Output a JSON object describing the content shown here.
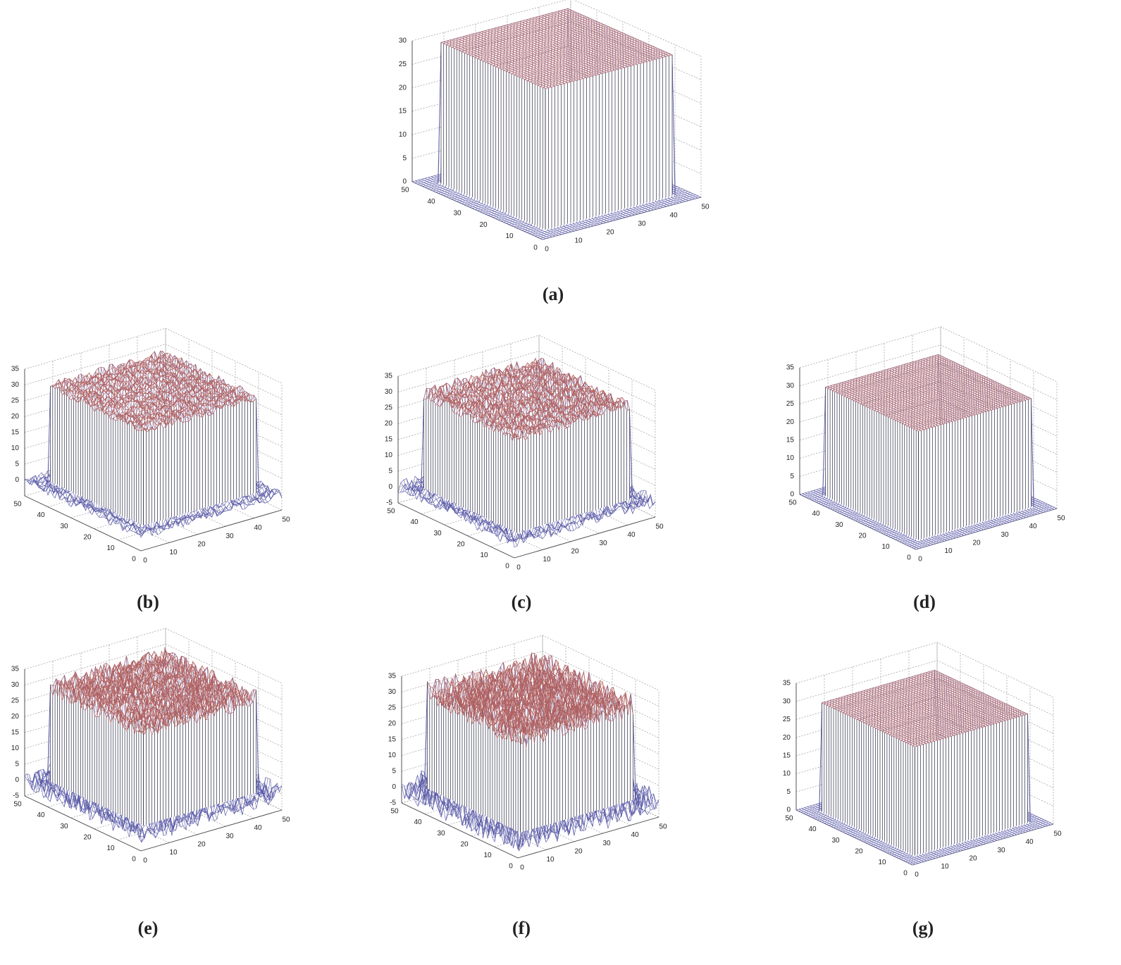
{
  "chart_data": [
    {
      "type": "surface",
      "caption": "(a)",
      "xlim": [
        0,
        50
      ],
      "ylim": [
        0,
        50
      ],
      "zlim": [
        0,
        30
      ],
      "xticks": [
        0,
        10,
        20,
        30,
        40,
        50
      ],
      "yticks": [
        0,
        10,
        20,
        30,
        40,
        50
      ],
      "zticks": [
        0,
        5,
        10,
        15,
        20,
        25,
        30
      ],
      "plateau_x": [
        5,
        45
      ],
      "plateau_y": [
        5,
        45
      ],
      "plateau_z": 30,
      "base_z": 0,
      "noise_amplitude": 0,
      "colors": {
        "top": "#b06060",
        "base": "#5a5aa8",
        "wall": "#2e2e48"
      }
    },
    {
      "type": "surface",
      "caption": "(b)",
      "xlim": [
        0,
        50
      ],
      "ylim": [
        0,
        50
      ],
      "zlim": [
        -5,
        35
      ],
      "xticks": [
        0,
        10,
        20,
        30,
        40,
        50
      ],
      "yticks": [
        0,
        10,
        20,
        30,
        40,
        50
      ],
      "zticks": [
        0,
        5,
        10,
        15,
        20,
        25,
        30,
        35
      ],
      "plateau_x": [
        5,
        45
      ],
      "plateau_y": [
        5,
        45
      ],
      "plateau_z": 30,
      "base_z": 0,
      "noise_amplitude": 1.5,
      "colors": {
        "top": "#b06060",
        "base": "#5a5aa8",
        "wall": "#2e2e48"
      }
    },
    {
      "type": "surface",
      "caption": "(c)",
      "xlim": [
        0,
        50
      ],
      "ylim": [
        0,
        50
      ],
      "zlim": [
        -5,
        35
      ],
      "xticks": [
        0,
        10,
        20,
        30,
        40,
        50
      ],
      "yticks": [
        0,
        10,
        20,
        30,
        40,
        50
      ],
      "zticks": [
        -5,
        0,
        5,
        10,
        15,
        20,
        25,
        30,
        35
      ],
      "plateau_x": [
        5,
        45
      ],
      "plateau_y": [
        5,
        45
      ],
      "plateau_z": 30,
      "base_z": 0,
      "noise_amplitude": 2,
      "colors": {
        "top": "#b06060",
        "base": "#5a5aa8",
        "wall": "#2e2e48"
      }
    },
    {
      "type": "surface",
      "caption": "(d)",
      "xlim": [
        0,
        50
      ],
      "ylim": [
        0,
        50
      ],
      "zlim": [
        0,
        35
      ],
      "xticks": [
        0,
        10,
        20,
        30,
        40,
        50
      ],
      "yticks": [
        0,
        10,
        20,
        30,
        40,
        50
      ],
      "zticks": [
        0,
        5,
        10,
        15,
        20,
        25,
        30,
        35
      ],
      "plateau_x": [
        5,
        45
      ],
      "plateau_y": [
        5,
        45
      ],
      "plateau_z": 30,
      "base_z": 0,
      "noise_amplitude": 0,
      "colors": {
        "top": "#b06060",
        "base": "#5a5aa8",
        "wall": "#2e2e48"
      }
    },
    {
      "type": "surface",
      "caption": "(e)",
      "xlim": [
        0,
        50
      ],
      "ylim": [
        0,
        50
      ],
      "zlim": [
        -5,
        35
      ],
      "xticks": [
        0,
        10,
        20,
        30,
        40,
        50
      ],
      "yticks": [
        0,
        10,
        20,
        30,
        40,
        50
      ],
      "zticks": [
        -5,
        0,
        5,
        10,
        15,
        20,
        25,
        30,
        35
      ],
      "plateau_x": [
        5,
        45
      ],
      "plateau_y": [
        5,
        45
      ],
      "plateau_z": 30,
      "base_z": 0,
      "noise_amplitude": 3,
      "colors": {
        "top": "#b06060",
        "base": "#5a5aa8",
        "wall": "#2e2e48"
      }
    },
    {
      "type": "surface",
      "caption": "(f)",
      "xlim": [
        0,
        50
      ],
      "ylim": [
        0,
        50
      ],
      "zlim": [
        -5,
        35
      ],
      "xticks": [
        0,
        10,
        20,
        30,
        40,
        50
      ],
      "yticks": [
        0,
        10,
        20,
        30,
        40,
        50
      ],
      "zticks": [
        -5,
        0,
        5,
        10,
        15,
        20,
        25,
        30,
        35
      ],
      "plateau_x": [
        5,
        45
      ],
      "plateau_y": [
        5,
        45
      ],
      "plateau_z": 30,
      "base_z": 0,
      "noise_amplitude": 4,
      "colors": {
        "top": "#b06060",
        "base": "#5a5aa8",
        "wall": "#2e2e48"
      }
    },
    {
      "type": "surface",
      "caption": "(g)",
      "xlim": [
        0,
        50
      ],
      "ylim": [
        0,
        50
      ],
      "zlim": [
        0,
        35
      ],
      "xticks": [
        0,
        10,
        20,
        30,
        40,
        50
      ],
      "yticks": [
        0,
        10,
        20,
        30,
        40,
        50
      ],
      "zticks": [
        0,
        5,
        10,
        15,
        20,
        25,
        30,
        35
      ],
      "plateau_x": [
        5,
        45
      ],
      "plateau_y": [
        5,
        45
      ],
      "plateau_z": 30,
      "base_z": 0,
      "noise_amplitude": 0,
      "colors": {
        "top": "#b06060",
        "base": "#5a5aa8",
        "wall": "#2e2e48"
      }
    }
  ]
}
